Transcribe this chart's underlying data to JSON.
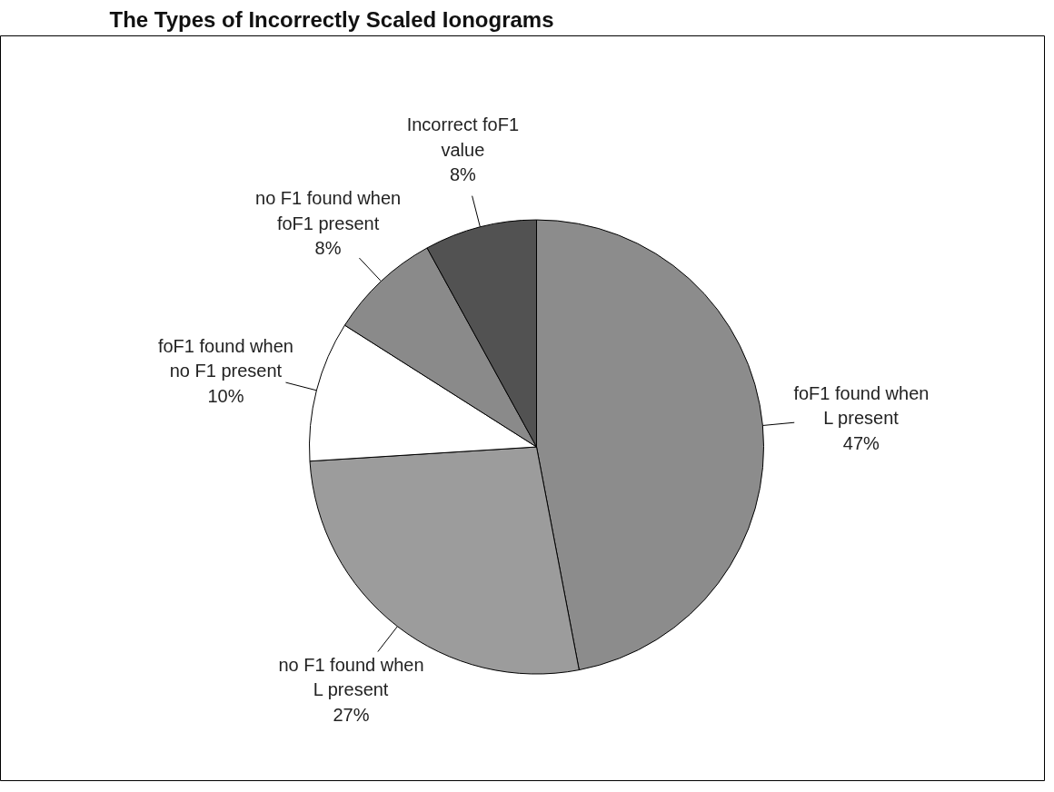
{
  "chart_data": {
    "type": "pie",
    "title": "The Types of Incorrectly Scaled Ionograms",
    "categories": [
      "foF1 found when\nL present",
      "no F1 found when\nL present",
      "foF1 found when\nno F1 present",
      "no F1 found when\nfoF1 present",
      "Incorrect foF1\nvalue"
    ],
    "values": [
      47,
      27,
      10,
      8,
      8
    ],
    "colors": [
      "#8c8c8c",
      "#9c9c9c",
      "#ffffff",
      "#8a8a8a",
      "#525252"
    ],
    "value_labels": [
      "47%",
      "27%",
      "10%",
      "8%",
      "8%"
    ]
  }
}
